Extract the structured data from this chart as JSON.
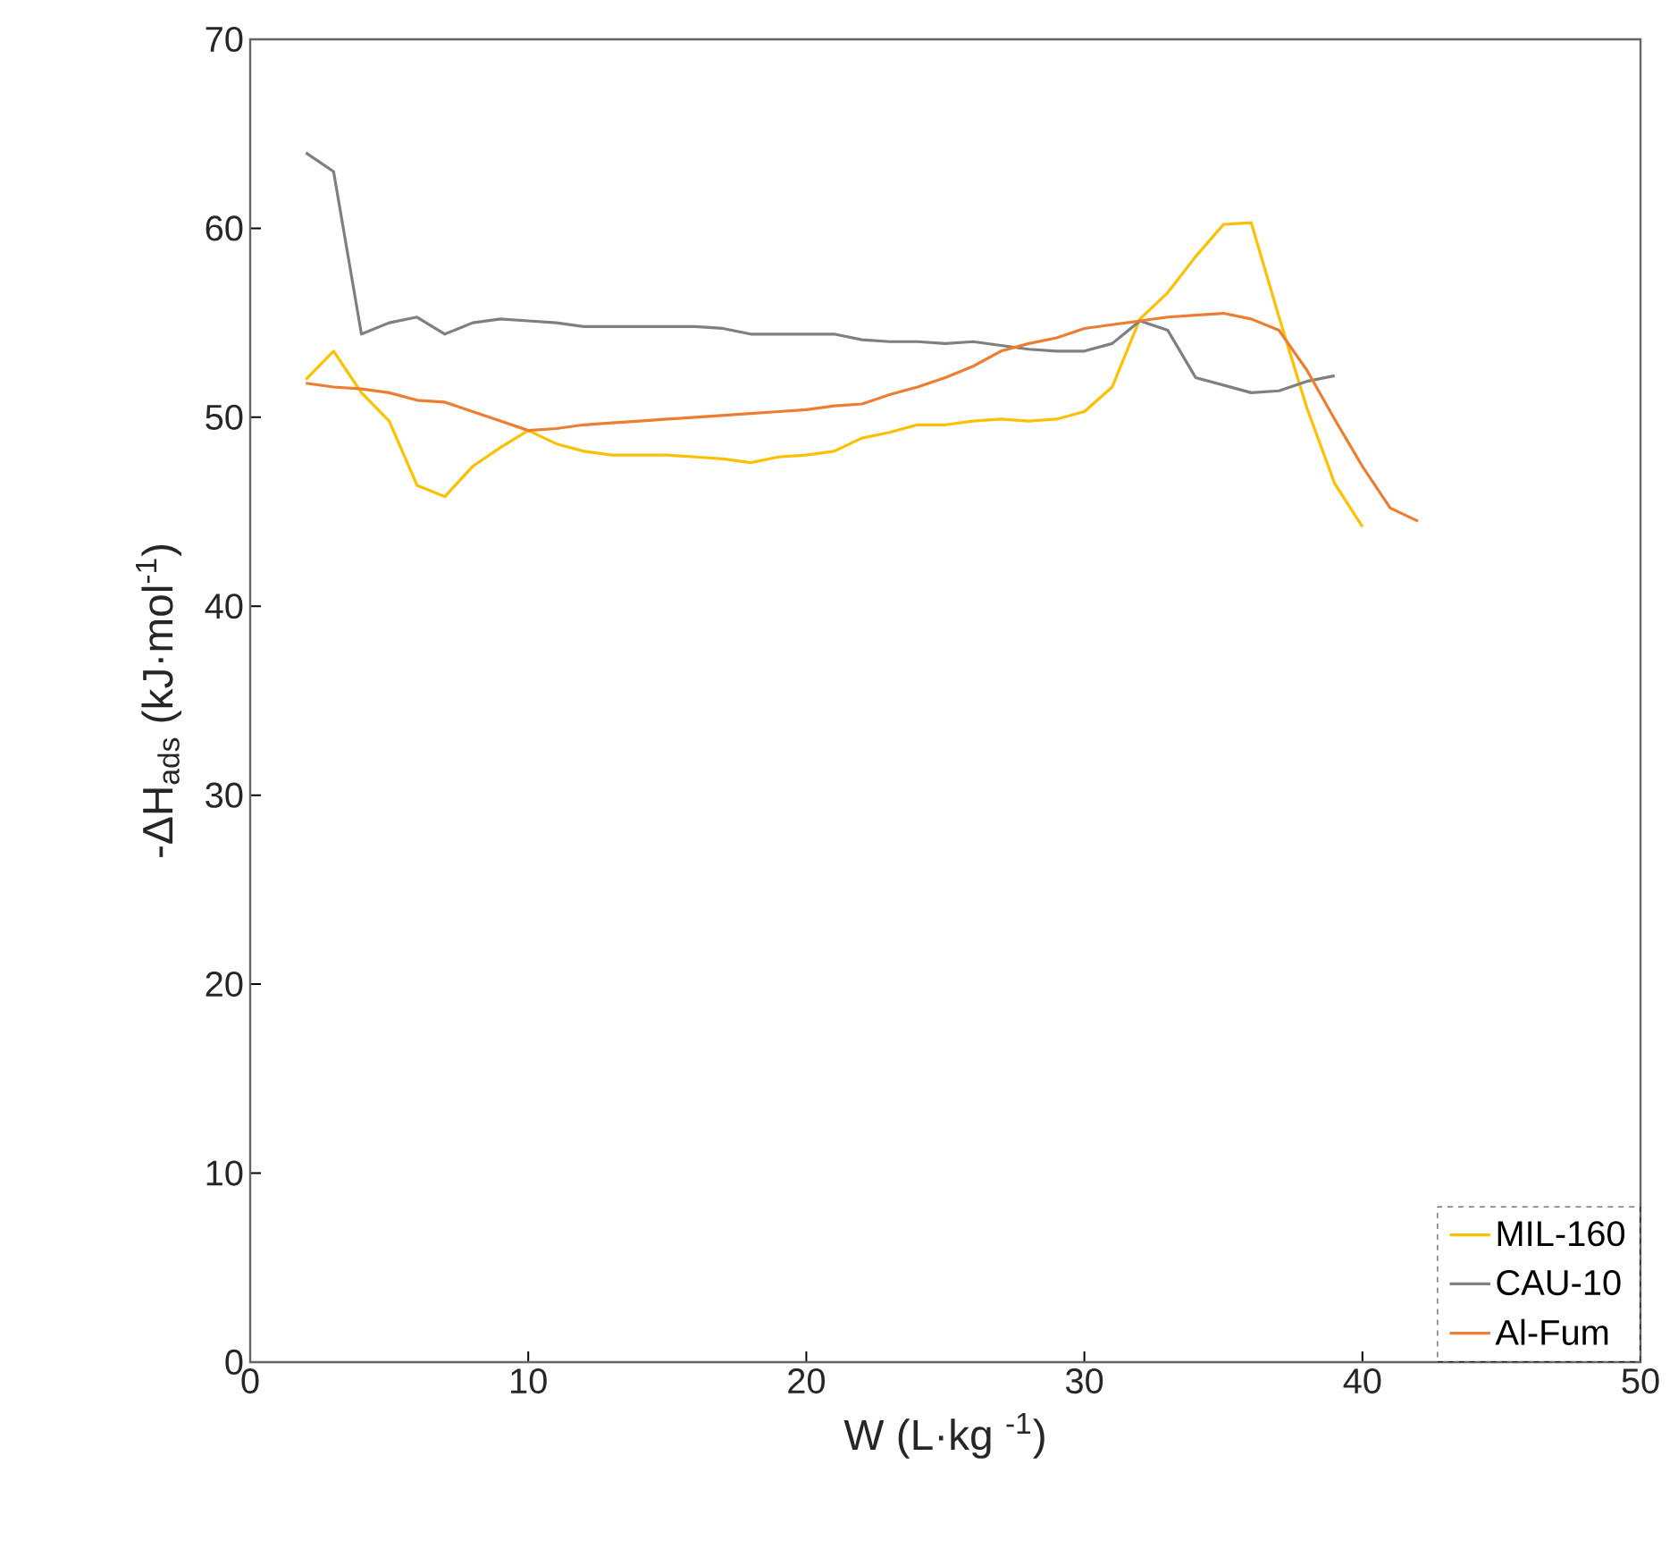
{
  "chart_data": {
    "type": "line",
    "xlabel": "W (L·kg $^{-1}$)",
    "ylabel": "-ΔH$_{ads}$ (kJ·mol$^{-1}$)",
    "x": [
      2,
      3,
      4,
      5,
      6,
      7,
      8,
      9,
      10,
      11,
      12,
      13,
      14,
      15,
      16,
      17,
      18,
      19,
      20,
      21,
      22,
      23,
      24,
      25,
      26,
      27,
      28,
      29,
      30,
      31,
      32,
      33,
      34,
      35,
      36,
      37,
      38,
      39,
      40,
      41,
      42
    ],
    "series": [
      {
        "name": "MIL-160",
        "color": "#ffc000",
        "values": [
          52,
          53.5,
          51.3,
          49.8,
          46.4,
          45.8,
          47.4,
          48.4,
          49.3,
          48.6,
          48.2,
          48.0,
          48.0,
          48.0,
          47.9,
          47.8,
          47.6,
          47.9,
          48.0,
          48.2,
          48.9,
          49.2,
          49.6,
          49.6,
          49.8,
          49.9,
          49.8,
          49.9,
          50.3,
          51.6,
          55.2,
          56.6,
          58.5,
          60.2,
          60.3,
          55.3,
          50.5,
          46.5,
          44.2,
          null,
          null
        ]
      },
      {
        "name": "CAU-10",
        "color": "#7f7f7f",
        "values": [
          64,
          63,
          54.4,
          55.0,
          55.3,
          54.4,
          55.0,
          55.2,
          55.1,
          55.0,
          54.8,
          54.8,
          54.8,
          54.8,
          54.8,
          54.7,
          54.4,
          54.4,
          54.4,
          54.4,
          54.1,
          54.0,
          54.0,
          53.9,
          54.0,
          53.8,
          53.6,
          53.5,
          53.5,
          53.9,
          55.1,
          54.6,
          52.1,
          51.7,
          51.3,
          51.4,
          51.9,
          52.2,
          null,
          null,
          null
        ]
      },
      {
        "name": "Al-Fum",
        "color": "#ed7d31",
        "values": [
          51.8,
          51.6,
          51.5,
          51.3,
          50.9,
          50.8,
          50.3,
          49.8,
          49.3,
          49.4,
          49.6,
          49.7,
          49.8,
          49.9,
          50.0,
          50.1,
          50.2,
          50.3,
          50.4,
          50.6,
          50.7,
          51.2,
          51.6,
          52.1,
          52.7,
          53.5,
          53.9,
          54.2,
          54.7,
          54.9,
          55.1,
          55.3,
          55.4,
          55.5,
          55.2,
          54.6,
          52.5,
          49.9,
          47.4,
          45.2,
          44.5
        ]
      }
    ],
    "xlim": [
      0,
      50
    ],
    "xticks": [
      0,
      10,
      20,
      30,
      40,
      50
    ],
    "ylim": [
      0,
      70
    ],
    "yticks": [
      0,
      10,
      20,
      30,
      40,
      50,
      60,
      70
    ],
    "grid": false,
    "legend": "bottom right",
    "marker": "none",
    "line_style": "solid"
  }
}
